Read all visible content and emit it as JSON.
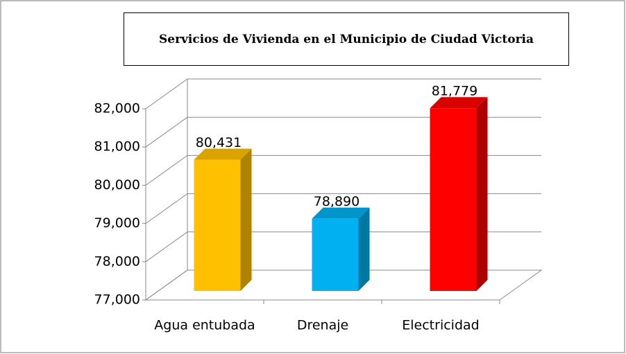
{
  "chart_data": {
    "type": "bar3d",
    "title": "Servicios de Vivienda en el Municipio de Ciudad Victoria",
    "categories": [
      "Agua entubada",
      "Drenaje",
      "Electricidad"
    ],
    "values": [
      80431,
      78890,
      81779
    ],
    "value_labels": [
      "80,431",
      "78,890",
      "81,779"
    ],
    "colors": [
      "#ffc000",
      "#00b0f0",
      "#ff0000"
    ],
    "ylim": [
      77000,
      82000
    ],
    "yticks": [
      {
        "value": 77000,
        "label": "77,000"
      },
      {
        "value": 78000,
        "label": "78,000"
      },
      {
        "value": 79000,
        "label": "79,000"
      },
      {
        "value": 80000,
        "label": "80,000"
      },
      {
        "value": 81000,
        "label": "81,000"
      },
      {
        "value": 82000,
        "label": "82,000"
      }
    ],
    "grid": true
  }
}
